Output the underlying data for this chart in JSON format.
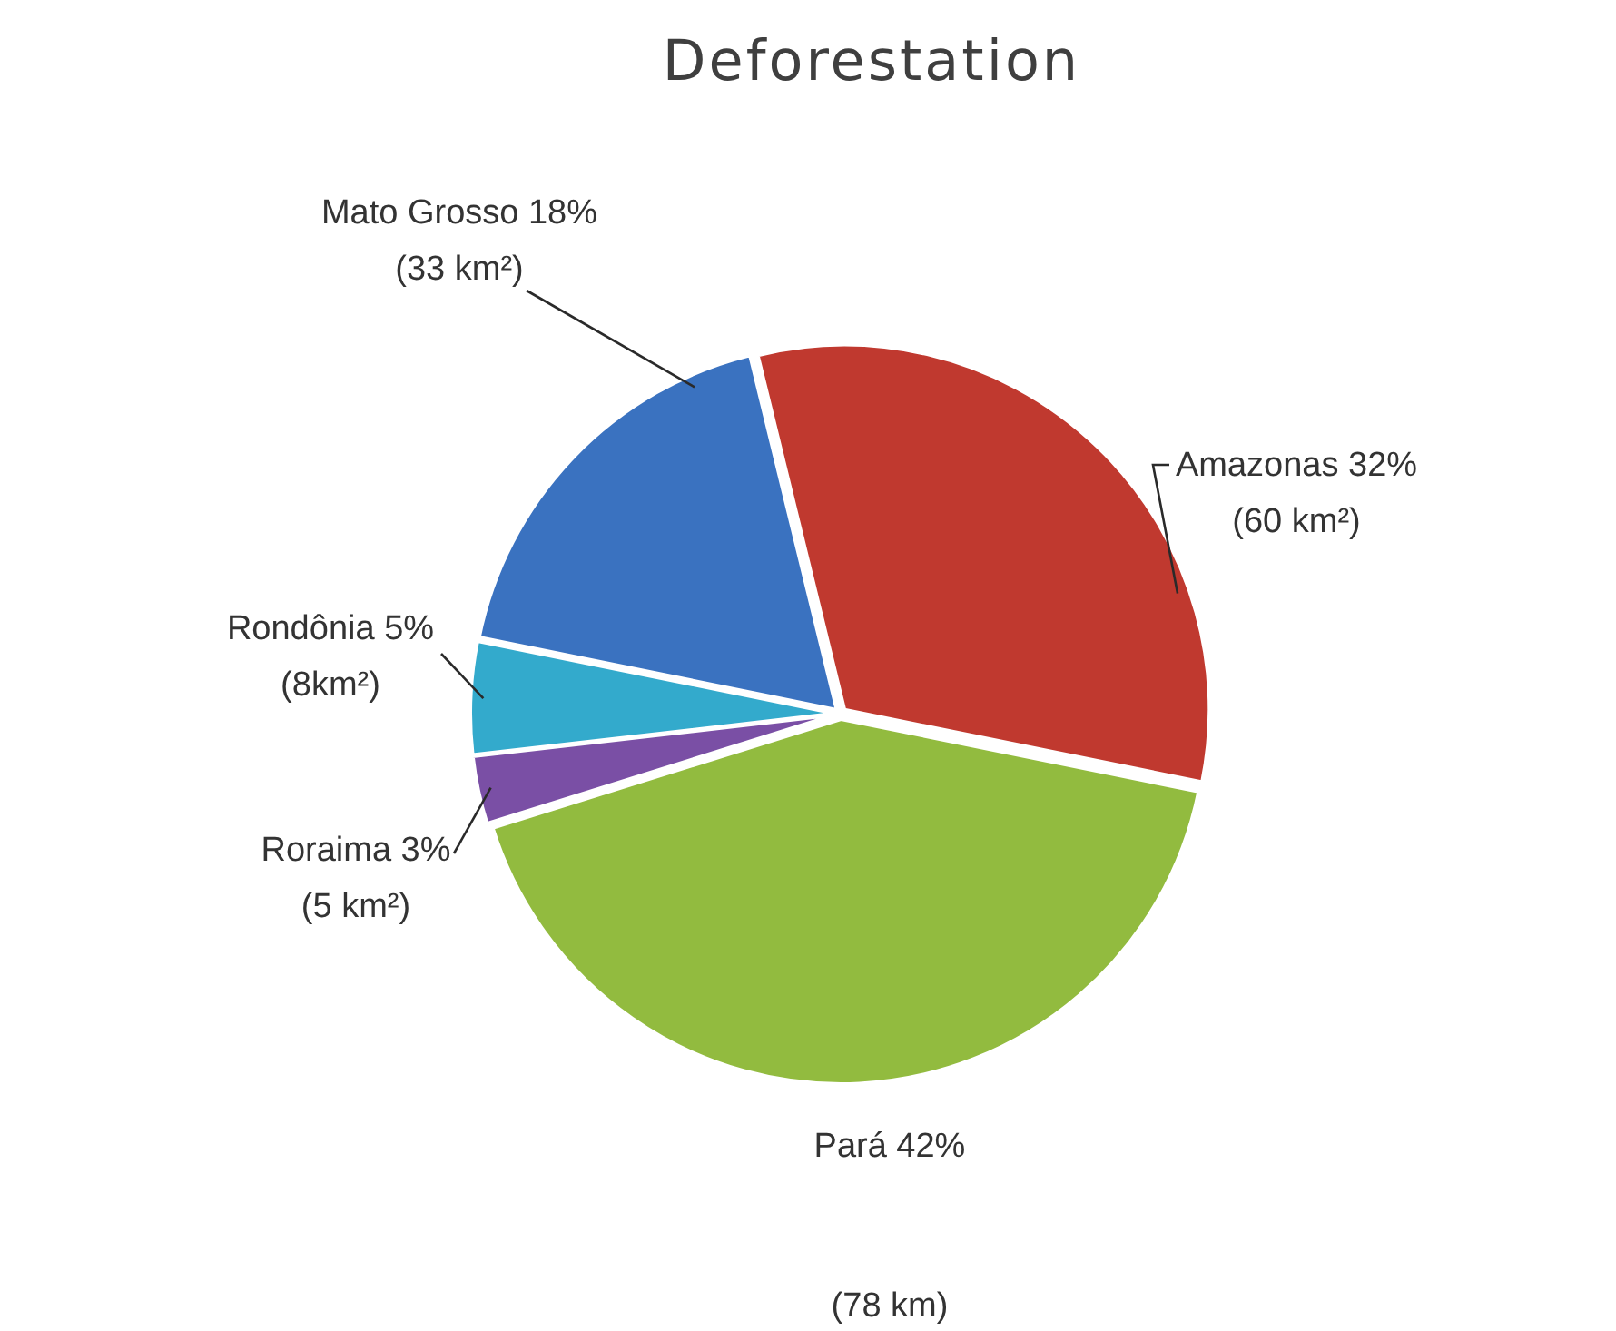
{
  "chart_data": {
    "type": "pie",
    "title": "Deforestation",
    "categories": [
      "Amazonas",
      "Pará",
      "Roraima",
      "Rondônia",
      "Mato Grosso"
    ],
    "values": [
      32,
      42,
      3,
      5,
      18
    ],
    "colors": [
      "#c0392f",
      "#92bb3f",
      "#7a4fa5",
      "#33aacc",
      "#3a72c0"
    ],
    "value_labels": [
      "32%\n(60 km²)",
      "42%\n(78 km)",
      "3%\n(5 km²)",
      "5%\n(8km²)",
      "18%\n(33 km²)"
    ]
  }
}
